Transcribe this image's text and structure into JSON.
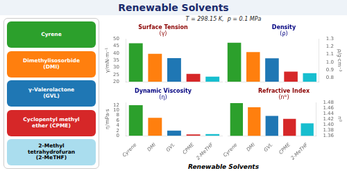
{
  "title": "Renewable Solvents",
  "subtitle": "T = 298.15 K,  p = 0.1 MPa",
  "annotations": [
    {
      "text": "Cyrene",
      "color": "#2ca02c"
    },
    {
      "text": "Dimethylisosorbide\n(DMI)",
      "color": "#ff7f0e"
    },
    {
      "text": "γ-Valerolactone\n(GVL)",
      "color": "#1f77b4"
    },
    {
      "text": "Cyclopentyl methyl\nether (CPME)",
      "color": "#d62728"
    },
    {
      "text": "2-Methyl\ntetrahydrofuran\n(2-MeTHF)",
      "color": "#aaddee"
    },
    {
      "text": "Renewable Solvents"
    }
  ],
  "chart_data": [
    {
      "type": "bar",
      "title": "Surface Tension",
      "subtitle": "(γ)",
      "categories": [
        "Cyrene",
        "DMI",
        "GVL",
        "CPME",
        "2-MeTHF"
      ],
      "values": [
        47.0,
        39.5,
        36.5,
        25.5,
        23.5
      ],
      "colors": [
        "#2ca02c",
        "#ff7f0e",
        "#1f77b4",
        "#d62728",
        "#17becf"
      ],
      "ylabel": "γ/mN·m⁻¹",
      "ylim": [
        20,
        50
      ],
      "yticks": [
        20,
        25,
        30,
        35,
        40,
        45,
        50
      ],
      "grid": false,
      "tick_labels": "y"
    },
    {
      "type": "bar",
      "title": "Density",
      "subtitle": "(ρ)",
      "categories": [
        "Cyrene",
        "DMI",
        "GVL",
        "CPME",
        "2-MeTHF"
      ],
      "values": [
        1.25,
        1.13,
        1.05,
        0.88,
        0.86
      ],
      "colors": [
        "#2ca02c",
        "#ff7f0e",
        "#1f77b4",
        "#d62728",
        "#17becf"
      ],
      "ylabel": "ρ/g·cm⁻³",
      "ylim": [
        0.75,
        1.3
      ],
      "yticks": [
        0.8,
        0.9,
        {
          "value": 1.0,
          "label": "1.0"
        },
        1.1,
        1.2,
        1.3
      ],
      "grid": false,
      "tick_labels": "y"
    },
    {
      "type": "bar",
      "title": "Dynamic Viscosity",
      "subtitle": "(η)",
      "categories": [
        "Cyrene",
        "DMI",
        "GVL",
        "CPME",
        "2-MeTHF"
      ],
      "values": [
        12.0,
        7.0,
        2.0,
        0.5,
        0.7
      ],
      "colors": [
        "#2ca02c",
        "#ff7f0e",
        "#1f77b4",
        "#d62728",
        "#17becf"
      ],
      "ylabel": "η/mPa·s",
      "ylim": [
        0,
        13
      ],
      "yticks": [
        0,
        2,
        4,
        6,
        8,
        10,
        12
      ],
      "grid": false
    },
    {
      "type": "bar",
      "title": "Refractive Index",
      "subtitle": "(nᴰ)",
      "categories": [
        "Cyrene",
        "DMI",
        "GVL",
        "CPME",
        "2-MeTHF"
      ],
      "values": [
        1.478,
        1.463,
        1.432,
        1.421,
        1.405
      ],
      "colors": [
        "#2ca02c",
        "#ff7f0e",
        "#1f77b4",
        "#d62728",
        "#17becf"
      ],
      "ylabel": "nᴰ",
      "ylim": [
        1.36,
        1.48
      ],
      "yticks": [
        1.36,
        1.38,
        {
          "value": 1.4,
          "label": "1.40"
        },
        1.42,
        1.44,
        1.46,
        1.48
      ],
      "grid": false
    }
  ]
}
